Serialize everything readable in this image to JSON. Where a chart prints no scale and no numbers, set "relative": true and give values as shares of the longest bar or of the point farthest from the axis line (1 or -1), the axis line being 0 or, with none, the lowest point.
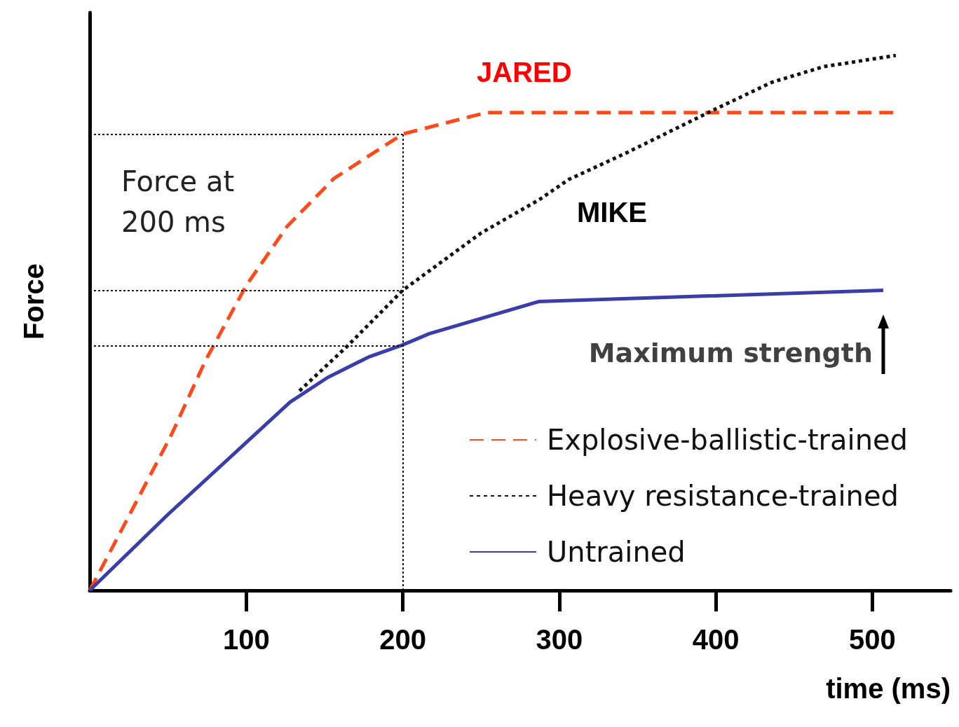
{
  "chart_data": {
    "type": "line",
    "relative": true,
    "xlabel": "time (ms)",
    "ylabel": "Force",
    "xlim": [
      0,
      550
    ],
    "xticks": [
      100,
      200,
      300,
      400,
      500
    ],
    "grid": false,
    "legend": "bottom right",
    "marker": "none",
    "series": [
      {
        "name": "Explosive-ballistic-trained",
        "color": "#ff4a1c",
        "line_style": "dashed",
        "x": [
          0,
          18,
          52,
          74,
          100,
          126,
          156,
          200,
          245,
          254,
          515
        ],
        "values": [
          0,
          0.1,
          0.29,
          0.43,
          0.57,
          0.68,
          0.77,
          0.853,
          0.887,
          0.893,
          0.893
        ]
      },
      {
        "name": "Heavy resistance-trained",
        "color": "#111111",
        "line_style": "dotted",
        "x": [
          134,
          164,
          200,
          250,
          287,
          306,
          343,
          400,
          436,
          469,
          515
        ],
        "values": [
          0.373,
          0.455,
          0.561,
          0.668,
          0.73,
          0.768,
          0.818,
          0.9,
          0.95,
          0.979,
          1
        ]
      },
      {
        "name": "Untrained",
        "color": "#3b3ea8",
        "line_style": "solid",
        "x": [
          0,
          50,
          128,
          152,
          178,
          200,
          217,
          287,
          507
        ],
        "values": [
          0,
          0.142,
          0.352,
          0.398,
          0.436,
          0.459,
          0.48,
          0.54,
          0.561
        ]
      }
    ],
    "ref_lines": [
      {
        "axis": "x",
        "value": 200
      },
      {
        "axis": "y",
        "value": 0.853
      },
      {
        "axis": "y",
        "value": 0.561
      },
      {
        "axis": "y",
        "value": 0.457
      }
    ],
    "annotations": [
      "JARED",
      "MIKE",
      {
        "text": "Maximum strength",
        "x": 507,
        "y": 0.561
      },
      "Force at 200 ms"
    ]
  }
}
